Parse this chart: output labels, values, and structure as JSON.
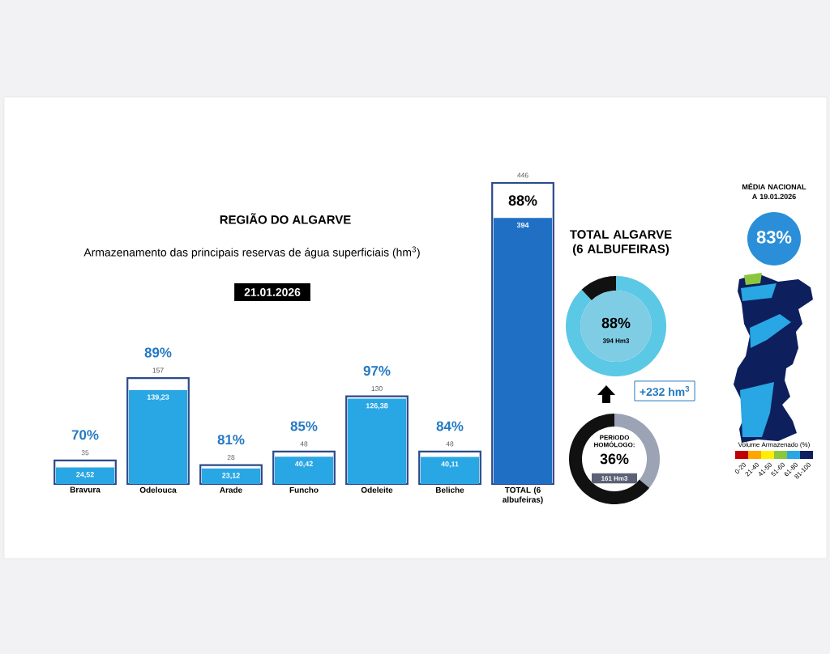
{
  "chart_data": [
    {
      "type": "bar",
      "title": "REGIÃO DO ALGARVE",
      "subtitle": "Armazenamento das principais reservas de água superficiais (hm$^{3}$)",
      "categories": [
        "Bravura",
        "Odelouca",
        "Arade",
        "Funcho",
        "Odeleite",
        "Beliche",
        "TOTAL (6 albufeiras)"
      ],
      "series": [
        {
          "color": "#2b4a8b",
          "values": [
            35,
            157,
            28,
            48,
            130,
            48,
            446
          ],
          "value_labels": [
            "35",
            "157",
            "28",
            "48",
            "130",
            "48",
            "446"
          ]
        },
        {
          "colors": [
            "#29a6e4",
            "#29a6e4",
            "#29a6e4",
            "#29a6e4",
            "#29a6e4",
            "#29a6e4",
            "#1f6fc5"
          ],
          "values": [
            24.52,
            139.23,
            23.12,
            40.42,
            126.38,
            40.11,
            394
          ],
          "value_labels": [
            "24,52",
            "139,23",
            "23,12",
            "40,42",
            "126,38",
            "40,11",
            "394"
          ]
        }
      ],
      "annotations": [
        "21.01.2026",
        "70%",
        "89%",
        "81%",
        "85%",
        "97%",
        "84%",
        "88%"
      ]
    },
    {
      "type": "donut",
      "title": "TOTAL ALGARVE (6 ALBUFEIRAS)",
      "categories": [
        null,
        null
      ],
      "values": [
        88,
        12
      ],
      "colors": [
        "#5bc8e6",
        "#111111"
      ],
      "annotations": [
        "88%",
        "394 Hm3",
        "+232 hm$^{3}$"
      ]
    },
    {
      "type": "donut",
      "title": "PERIODO HOMÓLOGO:",
      "categories": [
        null,
        null
      ],
      "values": [
        36,
        64
      ],
      "colors": [
        "#9ca3b5",
        "#111111"
      ],
      "annotations": [
        "36%",
        "161 Hm3"
      ]
    },
    {
      "type": "other",
      "title": "MÉDIA NACIONAL A 19.01.2026",
      "annotations": [
        "83%",
        "Volume Armazenado (%)",
        "0-20",
        "21-40",
        "41-50",
        "51-60",
        "61-80",
        "81-100"
      ]
    }
  ]
}
